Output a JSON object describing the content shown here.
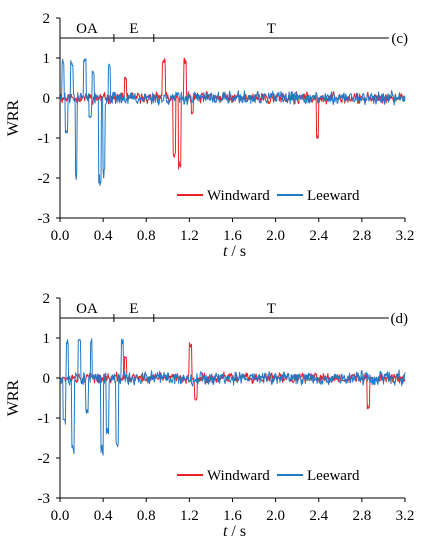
{
  "chart_data": [
    {
      "type": "line",
      "panel_label": "(c)",
      "xlabel_var": "t",
      "xlabel_unit": "/ s",
      "ylabel": "WRR",
      "xlim": [
        0.0,
        3.2
      ],
      "ylim": [
        -3,
        2
      ],
      "xticks": [
        "0.0",
        "0.4",
        "0.8",
        "1.2",
        "1.6",
        "2.0",
        "2.4",
        "2.8",
        "3.2"
      ],
      "yticks": [
        "2",
        "1",
        "0",
        "-1",
        "-2",
        "-3"
      ],
      "phases": [
        {
          "label": "OA",
          "start": 0.0,
          "end": 0.5
        },
        {
          "label": "E",
          "start": 0.5,
          "end": 0.87
        },
        {
          "label": "T",
          "start": 0.87,
          "end": 3.05
        }
      ],
      "phase_line_y": 1.5,
      "legend": "bottom-right",
      "series": [
        {
          "name": "Windward",
          "color": "#e8202a",
          "seed": 11,
          "noise": 0.18,
          "events": [
            [
              0.95,
              0.98,
              1.0
            ],
            [
              1.05,
              1.07,
              -1.6
            ],
            [
              1.1,
              1.12,
              -1.8
            ],
            [
              1.15,
              1.17,
              1.0
            ],
            [
              1.22,
              1.24,
              -0.4
            ],
            [
              0.6,
              0.62,
              0.55
            ],
            [
              2.38,
              2.4,
              -1.1
            ]
          ]
        },
        {
          "name": "Leeward",
          "color": "#1f78c8",
          "seed": 23,
          "noise": 0.22,
          "events": [
            [
              0.02,
              0.04,
              1.0
            ],
            [
              0.05,
              0.07,
              -0.9
            ],
            [
              0.1,
              0.12,
              0.95
            ],
            [
              0.14,
              0.16,
              -2.05
            ],
            [
              0.22,
              0.24,
              1.0
            ],
            [
              0.27,
              0.29,
              -0.5
            ],
            [
              0.36,
              0.38,
              -2.2
            ],
            [
              0.4,
              0.42,
              -2.05
            ],
            [
              0.45,
              0.47,
              0.9
            ],
            [
              0.3,
              0.32,
              0.7
            ]
          ]
        }
      ]
    },
    {
      "type": "line",
      "panel_label": "(d)",
      "xlabel_var": "t",
      "xlabel_unit": "/ s",
      "ylabel": "WRR",
      "xlim": [
        0.0,
        3.2
      ],
      "ylim": [
        -3,
        2
      ],
      "xticks": [
        "0.0",
        "0.4",
        "0.8",
        "1.2",
        "1.6",
        "2.0",
        "2.4",
        "2.8",
        "3.2"
      ],
      "yticks": [
        "2",
        "1",
        "0",
        "-1",
        "-2",
        "-3"
      ],
      "phases": [
        {
          "label": "OA",
          "start": 0.0,
          "end": 0.5
        },
        {
          "label": "E",
          "start": 0.5,
          "end": 0.87
        },
        {
          "label": "T",
          "start": 0.87,
          "end": 3.05
        }
      ],
      "phase_line_y": 1.5,
      "legend": "bottom-right",
      "series": [
        {
          "name": "Windward",
          "color": "#e8202a",
          "seed": 37,
          "noise": 0.17,
          "events": [
            [
              1.2,
              1.22,
              0.9
            ],
            [
              0.6,
              0.62,
              0.55
            ],
            [
              2.85,
              2.87,
              -0.8
            ],
            [
              1.25,
              1.27,
              -0.6
            ]
          ]
        },
        {
          "name": "Leeward",
          "color": "#1f78c8",
          "seed": 53,
          "noise": 0.24,
          "events": [
            [
              0.03,
              0.05,
              -1.2
            ],
            [
              0.06,
              0.08,
              1.0
            ],
            [
              0.11,
              0.13,
              -1.9
            ],
            [
              0.17,
              0.19,
              1.0
            ],
            [
              0.24,
              0.26,
              -0.9
            ],
            [
              0.28,
              0.3,
              1.0
            ],
            [
              0.38,
              0.4,
              -1.95
            ],
            [
              0.43,
              0.45,
              -1.4
            ],
            [
              0.52,
              0.54,
              -1.85
            ],
            [
              0.57,
              0.59,
              1.0
            ]
          ]
        }
      ]
    }
  ]
}
